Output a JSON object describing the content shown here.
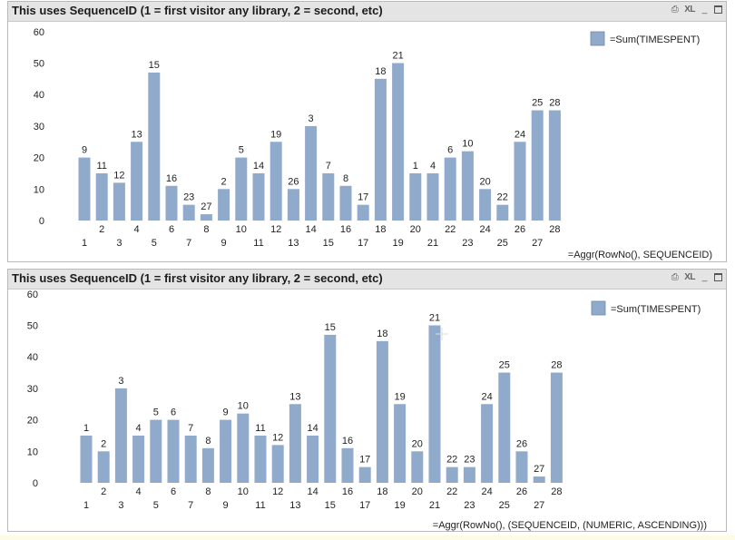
{
  "panels": [
    {
      "title": "This uses SequenceID (1 = first visitor any library, 2 = second, etc)",
      "controls": {
        "print_label": "⎙",
        "xl_label": "XL",
        "minimize_label": "_"
      },
      "legend": "=Sum(TIMESPENT)",
      "dimension_label": "=Aggr(RowNo(), SEQUENCEID)"
    },
    {
      "title": "This uses SequenceID (1 = first visitor any library, 2 = second, etc)",
      "controls": {
        "print_label": "⎙",
        "xl_label": "XL",
        "minimize_label": "_"
      },
      "legend": "=Sum(TIMESPENT)",
      "dimension_label": "=Aggr(RowNo(), (SEQUENCEID, (NUMERIC, ASCENDING)))"
    }
  ],
  "chart_data": [
    {
      "type": "bar",
      "title": "This uses SequenceID (1 = first visitor any library, 2 = second, etc)",
      "xlabel": "=Aggr(RowNo(), SEQUENCEID)",
      "ylabel": "",
      "ylim": [
        0,
        60
      ],
      "yticks": [
        0,
        10,
        20,
        30,
        40,
        50,
        60
      ],
      "grid": false,
      "legend_position": "top-right",
      "bar_color": "#8faacb",
      "categories": [
        "1",
        "2",
        "3",
        "4",
        "5",
        "6",
        "7",
        "8",
        "9",
        "10",
        "11",
        "12",
        "13",
        "14",
        "15",
        "16",
        "17",
        "18",
        "19",
        "20",
        "21",
        "22",
        "23",
        "24",
        "25",
        "26",
        "27",
        "28"
      ],
      "series": [
        {
          "name": "=Sum(TIMESPENT)",
          "values": [
            20,
            15,
            12,
            25,
            47,
            11,
            5,
            2,
            10,
            20,
            15,
            25,
            10,
            30,
            15,
            11,
            5,
            45,
            50,
            15,
            15,
            20,
            22,
            10,
            5,
            25,
            35,
            35
          ],
          "data_labels": [
            "9",
            "11",
            "12",
            "13",
            "15",
            "16",
            "23",
            "27",
            "2",
            "5",
            "14",
            "19",
            "26",
            "3",
            "7",
            "8",
            "17",
            "18",
            "21",
            "1",
            "4",
            "6",
            "10",
            "20",
            "22",
            "24",
            "25",
            "28"
          ]
        }
      ]
    },
    {
      "type": "bar",
      "title": "This uses SequenceID (1 = first visitor any library, 2 = second, etc)",
      "xlabel": "=Aggr(RowNo(), (SEQUENCEID, (NUMERIC, ASCENDING)))",
      "ylabel": "",
      "ylim": [
        0,
        60
      ],
      "yticks": [
        0,
        10,
        20,
        30,
        40,
        50,
        60
      ],
      "grid": false,
      "legend_position": "top-right",
      "bar_color": "#8faacb",
      "categories": [
        "1",
        "2",
        "3",
        "4",
        "5",
        "6",
        "7",
        "8",
        "9",
        "10",
        "11",
        "12",
        "13",
        "14",
        "15",
        "16",
        "17",
        "18",
        "19",
        "20",
        "21",
        "22",
        "23",
        "24",
        "25",
        "26",
        "27",
        "28"
      ],
      "series": [
        {
          "name": "=Sum(TIMESPENT)",
          "values": [
            15,
            10,
            30,
            15,
            20,
            20,
            15,
            11,
            20,
            22,
            15,
            12,
            25,
            15,
            47,
            11,
            5,
            45,
            25,
            10,
            50,
            5,
            5,
            25,
            35,
            10,
            2,
            35
          ],
          "data_labels": [
            "1",
            "2",
            "3",
            "4",
            "5",
            "6",
            "7",
            "8",
            "9",
            "10",
            "11",
            "12",
            "13",
            "14",
            "15",
            "16",
            "17",
            "18",
            "19",
            "20",
            "21",
            "22",
            "23",
            "24",
            "25",
            "26",
            "27",
            "28"
          ]
        }
      ]
    }
  ]
}
